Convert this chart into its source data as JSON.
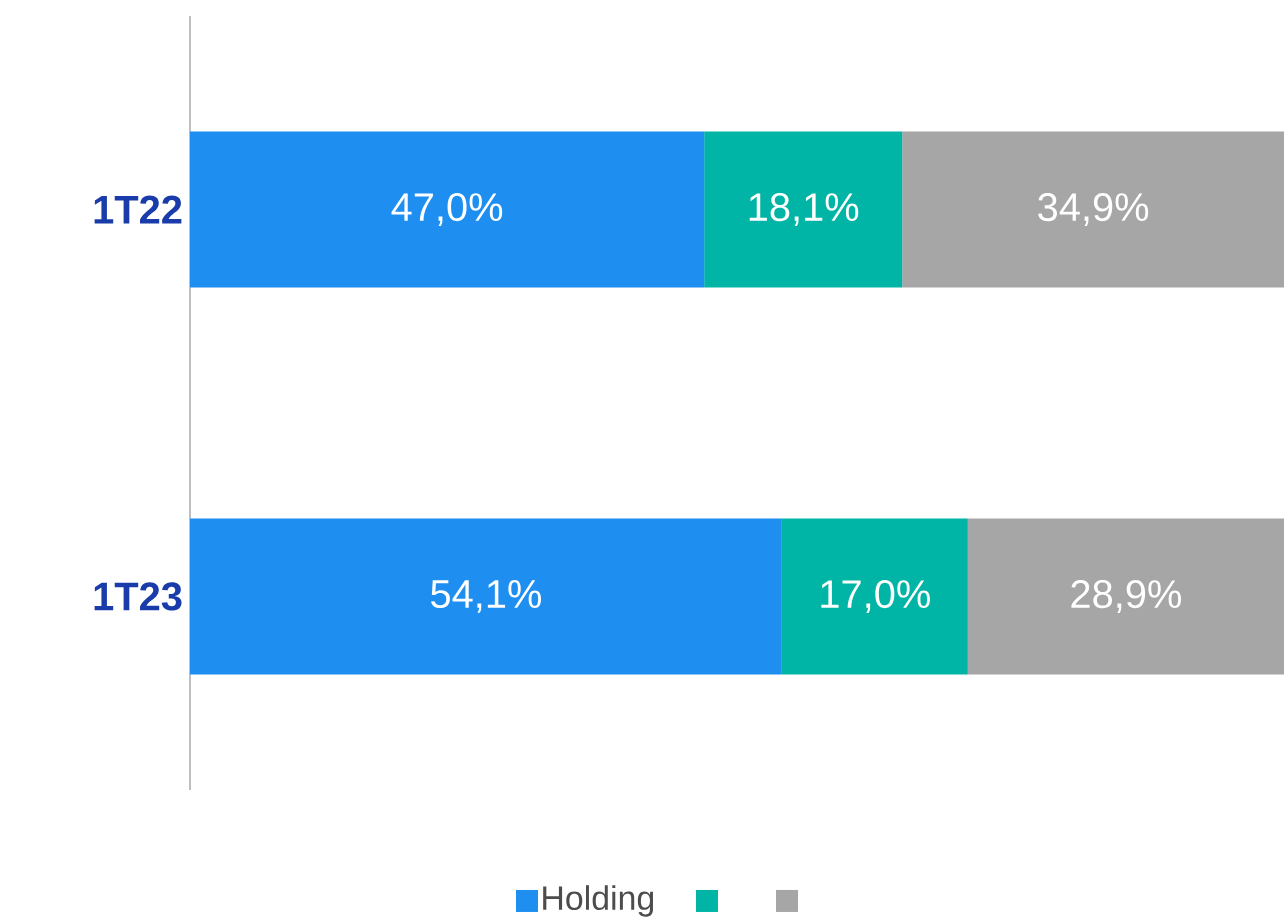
{
  "chart_data": {
    "type": "bar",
    "orientation": "horizontal",
    "stacked": true,
    "categories": [
      "1T22",
      "1T23"
    ],
    "series": [
      {
        "name": "Holding",
        "color": "#1e8ff0",
        "values": [
          47.0,
          54.1
        ],
        "value_labels": [
          "47,0%",
          "54,1%"
        ]
      },
      {
        "color": "#00b5a5",
        "values": [
          18.1,
          17.0
        ],
        "value_labels": [
          "18,1%",
          "17,0%"
        ]
      },
      {
        "color": "#a6a6a6",
        "values": [
          34.9,
          28.9
        ],
        "value_labels": [
          "34,9%",
          "28,9%"
        ]
      }
    ],
    "xlim": [
      0,
      100
    ],
    "tick_labels": "y",
    "legend": "bottom",
    "grid": false
  }
}
